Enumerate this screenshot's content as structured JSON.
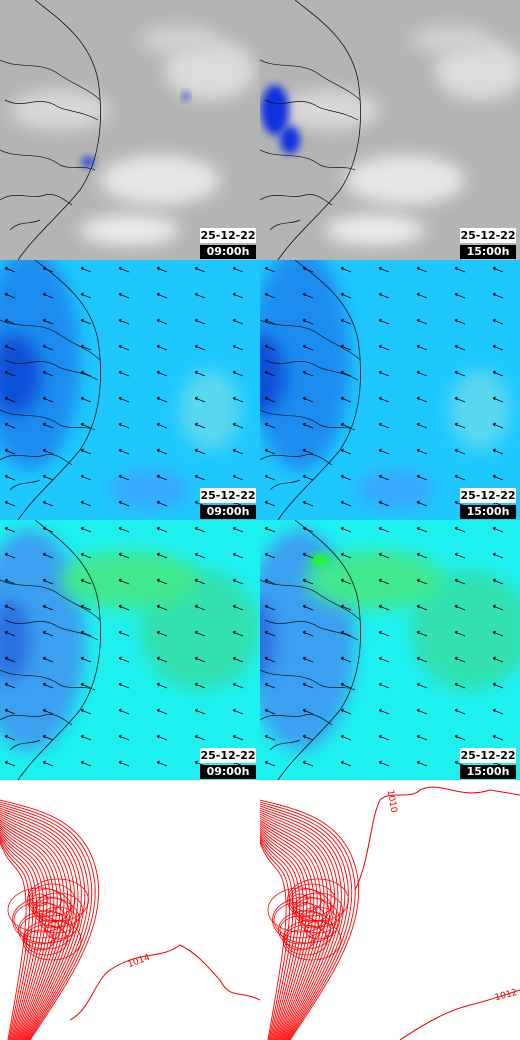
{
  "panels": [
    [
      {
        "date": "25-12-22",
        "time": "09:00h"
      },
      {
        "date": "25-12-22",
        "time": "15:00h"
      }
    ],
    [
      {
        "date": "25-12-22",
        "time": "09:00h"
      },
      {
        "date": "25-12-22",
        "time": "15:00h"
      }
    ],
    [
      {
        "date": "25-12-22",
        "time": "09:00h"
      },
      {
        "date": "25-12-22",
        "time": "15:00h"
      }
    ],
    [
      {
        "contour_labels": [
          "1014"
        ]
      },
      {
        "contour_labels": [
          "1010",
          "1012"
        ]
      }
    ]
  ]
}
